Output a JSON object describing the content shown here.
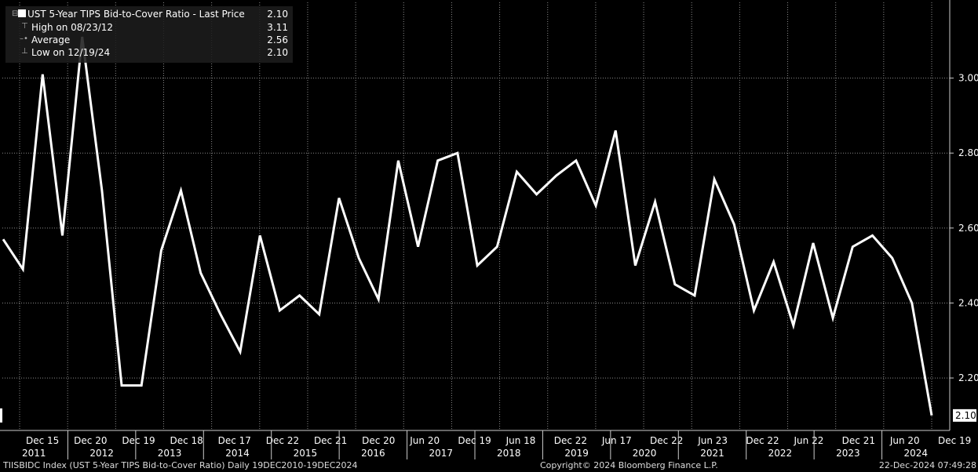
{
  "legend": {
    "title": "UST 5-Year TIPS Bid-to-Cover Ratio - Last Price",
    "last": "2.10",
    "high_label": "High on 08/23/12",
    "high_value": "3.11",
    "avg_label": "Average",
    "avg_value": "2.56",
    "low_label": "Low on 12/19/24",
    "low_value": "2.10"
  },
  "footer": {
    "left": "TIISBIDC Index (UST 5-Year TIPS Bid-to-Cover Ratio)  Daily 19DEC2010-19DEC2024",
    "center": "Copyright© 2024 Bloomberg Finance L.P.",
    "right": "22-Dec-2024 07:49:28"
  },
  "colors": {
    "background": "#000000",
    "line": "#ffffff",
    "grid": "#8a8a8a",
    "axis": "#cccccc"
  },
  "chart_data": {
    "type": "line",
    "title": "UST 5-Year TIPS Bid-to-Cover Ratio - Last Price",
    "y_ticks": [
      2.2,
      2.4,
      2.6,
      2.8,
      3.0
    ],
    "y_tick_labels": [
      "2.20",
      "2.40",
      "2.60",
      "2.80",
      "3.00"
    ],
    "ylim": [
      2.06,
      3.2
    ],
    "last_price_label": "2.10",
    "x_tick_labels": [
      "Dec 15",
      "Dec 20",
      "Dec 19",
      "Dec 18",
      "Dec 17",
      "Dec 22",
      "Dec 21",
      "Dec 20",
      "Jun 20",
      "Dec 19",
      "Jun 18",
      "Dec 22",
      "Jun 17",
      "Dec 22",
      "Jun 23",
      "Dec 22",
      "Jun 22",
      "Dec 21",
      "Jun 20",
      "Dec 19"
    ],
    "year_labels": [
      "2011",
      "2012",
      "2013",
      "2014",
      "2015",
      "2016",
      "2017",
      "2018",
      "2019",
      "2020",
      "2021",
      "2022",
      "2023",
      "2024"
    ],
    "grid": true,
    "legend_position": "top-left",
    "series": [
      {
        "values": [
          2.57,
          2.49,
          3.01,
          2.58,
          3.11,
          2.7,
          2.18,
          2.18,
          2.54,
          2.7,
          2.48,
          2.37,
          2.27,
          2.58,
          2.38,
          2.42,
          2.37,
          2.68,
          2.52,
          2.41,
          2.78,
          2.55,
          2.78,
          2.8,
          2.5,
          2.55,
          2.75,
          2.69,
          2.74,
          2.78,
          2.66,
          2.86,
          2.5,
          2.67,
          2.45,
          2.42,
          2.73,
          2.61,
          2.38,
          2.51,
          2.34,
          2.56,
          2.36,
          2.55,
          2.58,
          2.52,
          2.4,
          2.1
        ]
      }
    ]
  }
}
